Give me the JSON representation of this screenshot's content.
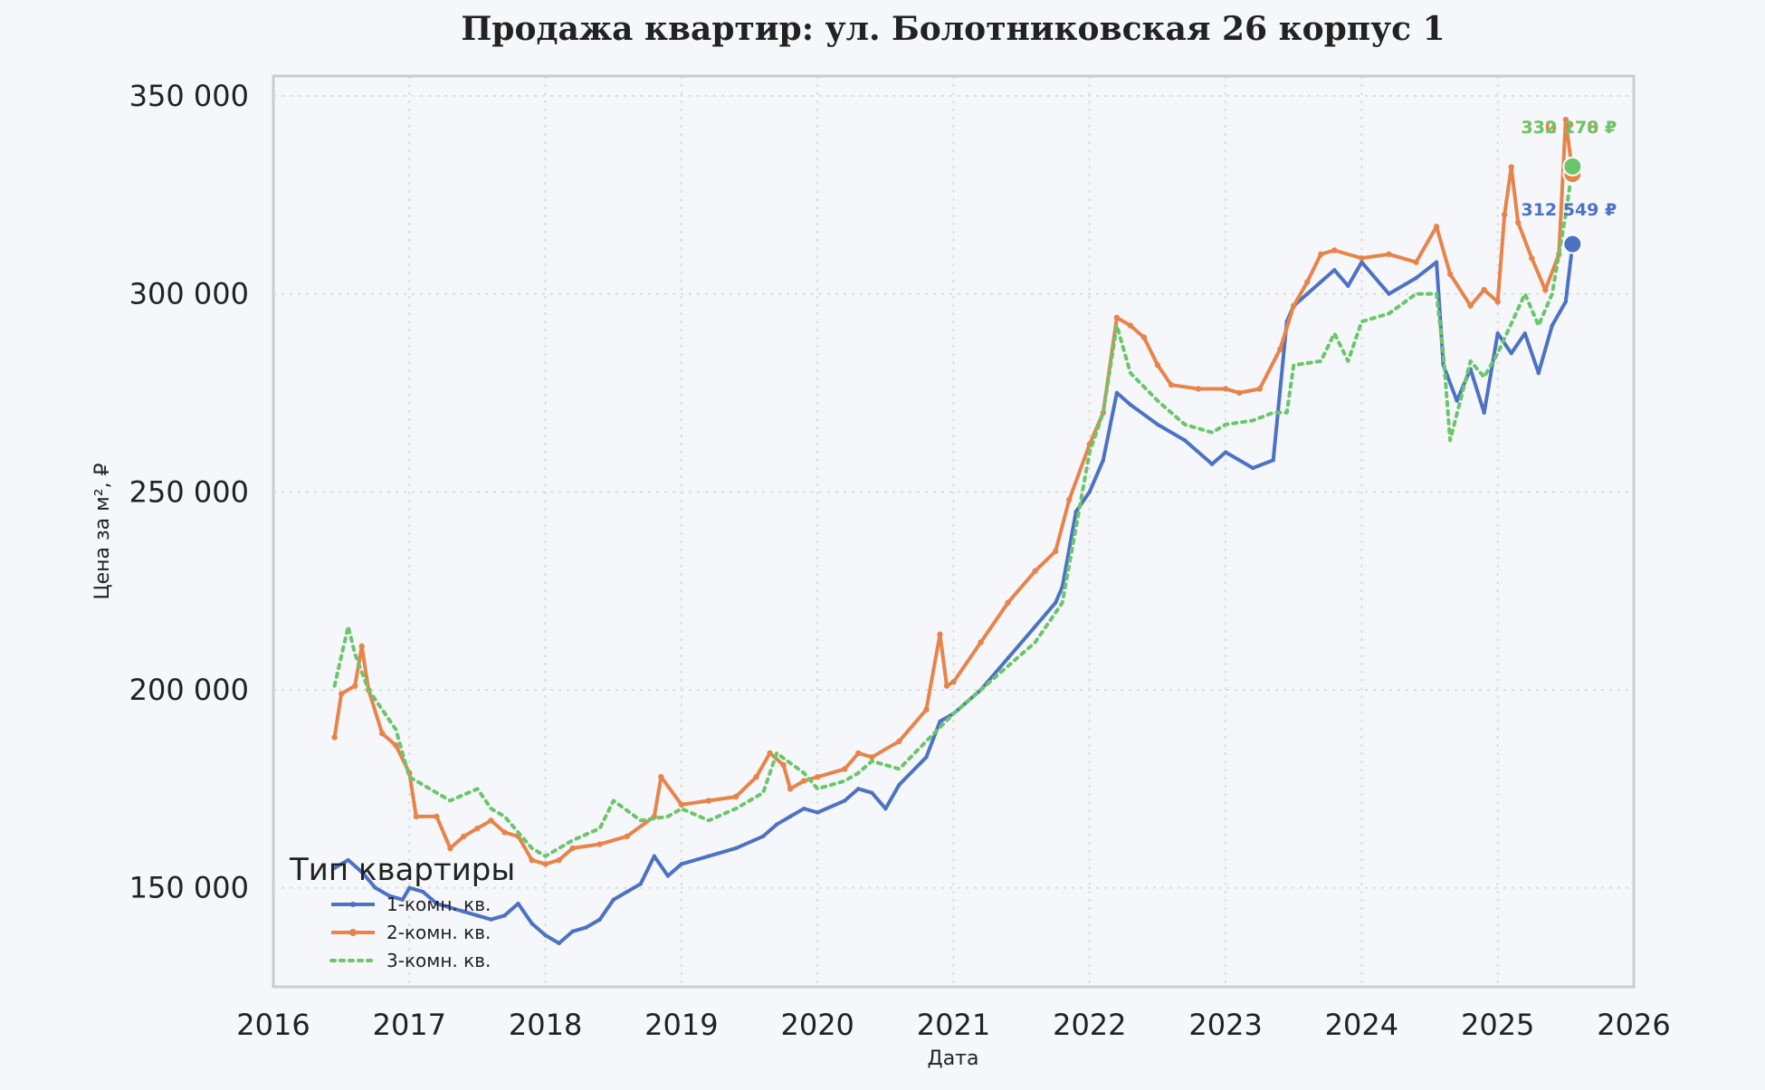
{
  "chart_data": {
    "type": "line",
    "title": "Продажа квартир: ул. Болотниковская 26 корпус 1",
    "xlabel": "Дата",
    "ylabel": "Цена за м², ₽",
    "xlim": [
      2016,
      2026
    ],
    "ylim": [
      125000,
      355000
    ],
    "x_ticks": [
      2016,
      2017,
      2018,
      2019,
      2020,
      2021,
      2022,
      2023,
      2024,
      2025,
      2026
    ],
    "x_tick_labels": [
      "2016",
      "2017",
      "2018",
      "2019",
      "2020",
      "2021",
      "2022",
      "2023",
      "2024",
      "2025",
      "2026"
    ],
    "y_ticks": [
      150000,
      200000,
      250000,
      300000,
      350000
    ],
    "y_tick_labels": [
      "150 000",
      "200 000",
      "250 000",
      "300 000",
      "350 000"
    ],
    "grid": true,
    "legend": {
      "title": "Тип квартиры",
      "placement": "lower-left"
    },
    "series": [
      {
        "name": "1-комн. кв.",
        "color": "#4c72c4",
        "style": "solid-with-small-markers",
        "x": [
          2016.45,
          2016.55,
          2016.65,
          2016.75,
          2016.85,
          2016.95,
          2017.0,
          2017.1,
          2017.2,
          2017.3,
          2017.4,
          2017.5,
          2017.6,
          2017.7,
          2017.8,
          2017.9,
          2018.0,
          2018.1,
          2018.2,
          2018.3,
          2018.4,
          2018.5,
          2018.6,
          2018.7,
          2018.8,
          2018.9,
          2019.0,
          2019.2,
          2019.4,
          2019.6,
          2019.7,
          2019.8,
          2019.9,
          2020.0,
          2020.2,
          2020.3,
          2020.4,
          2020.5,
          2020.6,
          2020.8,
          2020.9,
          2021.0,
          2021.2,
          2021.4,
          2021.6,
          2021.75,
          2021.8,
          2021.9,
          2022.0,
          2022.1,
          2022.2,
          2022.3,
          2022.5,
          2022.7,
          2022.9,
          2023.0,
          2023.2,
          2023.35,
          2023.45,
          2023.5,
          2023.6,
          2023.7,
          2023.8,
          2023.9,
          2024.0,
          2024.2,
          2024.4,
          2024.55,
          2024.6,
          2024.7,
          2024.8,
          2024.9,
          2025.0,
          2025.1,
          2025.2,
          2025.3,
          2025.4,
          2025.5,
          2025.55
        ],
        "values": [
          155000,
          157000,
          154000,
          150000,
          148000,
          147000,
          150000,
          149000,
          146000,
          145000,
          144000,
          143000,
          142000,
          143000,
          146000,
          141000,
          138000,
          136000,
          139000,
          140000,
          142000,
          147000,
          149000,
          151000,
          158000,
          153000,
          156000,
          158000,
          160000,
          163000,
          166000,
          168000,
          170000,
          169000,
          172000,
          175000,
          174000,
          170000,
          176000,
          183000,
          192000,
          194000,
          200000,
          208000,
          216000,
          222000,
          226000,
          245000,
          250000,
          258000,
          275000,
          272000,
          267000,
          263000,
          257000,
          260000,
          256000,
          258000,
          293000,
          297000,
          300000,
          303000,
          306000,
          302000,
          308000,
          300000,
          304000,
          308000,
          282000,
          273000,
          281000,
          270000,
          290000,
          285000,
          290000,
          280000,
          292000,
          298000,
          312549
        ]
      },
      {
        "name": "2-комн. кв.",
        "color": "#e8834a",
        "style": "solid-with-dot-markers",
        "x": [
          2016.45,
          2016.5,
          2016.6,
          2016.65,
          2016.7,
          2016.8,
          2016.9,
          2017.0,
          2017.05,
          2017.2,
          2017.3,
          2017.4,
          2017.5,
          2017.6,
          2017.7,
          2017.8,
          2017.9,
          2018.0,
          2018.1,
          2018.2,
          2018.4,
          2018.6,
          2018.8,
          2018.85,
          2019.0,
          2019.2,
          2019.4,
          2019.55,
          2019.65,
          2019.75,
          2019.8,
          2019.9,
          2020.0,
          2020.2,
          2020.3,
          2020.4,
          2020.6,
          2020.8,
          2020.9,
          2020.95,
          2021.0,
          2021.2,
          2021.4,
          2021.6,
          2021.75,
          2021.85,
          2022.0,
          2022.1,
          2022.2,
          2022.3,
          2022.4,
          2022.5,
          2022.6,
          2022.8,
          2023.0,
          2023.1,
          2023.25,
          2023.4,
          2023.5,
          2023.6,
          2023.7,
          2023.8,
          2024.0,
          2024.2,
          2024.4,
          2024.55,
          2024.65,
          2024.8,
          2024.9,
          2025.0,
          2025.05,
          2025.1,
          2025.15,
          2025.25,
          2025.35,
          2025.45,
          2025.5,
          2025.55
        ],
        "values": [
          188000,
          199000,
          201000,
          211000,
          200000,
          189000,
          186000,
          179000,
          168000,
          168000,
          160000,
          163000,
          165000,
          167000,
          164000,
          163000,
          157000,
          156000,
          157000,
          160000,
          161000,
          163000,
          168000,
          178000,
          171000,
          172000,
          173000,
          178000,
          184000,
          181000,
          175000,
          177000,
          178000,
          180000,
          184000,
          183000,
          187000,
          195000,
          214000,
          201000,
          202000,
          212000,
          222000,
          230000,
          235000,
          248000,
          262000,
          270000,
          294000,
          292000,
          289000,
          282000,
          277000,
          276000,
          276000,
          275000,
          276000,
          286000,
          297000,
          303000,
          310000,
          311000,
          309000,
          310000,
          308000,
          317000,
          305000,
          297000,
          301000,
          298000,
          320000,
          332000,
          318000,
          309000,
          301000,
          310000,
          344000,
          330278
        ]
      },
      {
        "name": "3-комн. кв.",
        "color": "#6ac66a",
        "style": "dotted",
        "x": [
          2016.45,
          2016.55,
          2016.6,
          2016.7,
          2016.8,
          2016.9,
          2017.0,
          2017.1,
          2017.3,
          2017.5,
          2017.6,
          2017.7,
          2017.8,
          2017.9,
          2018.0,
          2018.2,
          2018.4,
          2018.5,
          2018.7,
          2018.9,
          2019.0,
          2019.2,
          2019.4,
          2019.6,
          2019.7,
          2019.9,
          2020.0,
          2020.2,
          2020.3,
          2020.4,
          2020.6,
          2020.8,
          2021.0,
          2021.2,
          2021.4,
          2021.6,
          2021.8,
          2022.0,
          2022.1,
          2022.2,
          2022.3,
          2022.5,
          2022.7,
          2022.9,
          2023.0,
          2023.2,
          2023.35,
          2023.45,
          2023.5,
          2023.7,
          2023.8,
          2023.9,
          2024.0,
          2024.2,
          2024.4,
          2024.55,
          2024.6,
          2024.65,
          2024.8,
          2024.9,
          2025.0,
          2025.2,
          2025.3,
          2025.4,
          2025.5,
          2025.55
        ],
        "values": [
          201000,
          216000,
          209000,
          200000,
          195000,
          190000,
          178000,
          176000,
          172000,
          175000,
          170000,
          168000,
          164000,
          160000,
          158000,
          162000,
          165000,
          172000,
          167000,
          168000,
          170000,
          167000,
          170000,
          174000,
          184000,
          179000,
          175000,
          177000,
          179000,
          182000,
          180000,
          187000,
          194000,
          200000,
          206000,
          212000,
          222000,
          260000,
          270000,
          292000,
          280000,
          273000,
          267000,
          265000,
          267000,
          268000,
          270000,
          270000,
          282000,
          283000,
          290000,
          283000,
          293000,
          295000,
          300000,
          300000,
          285000,
          263000,
          283000,
          279000,
          285000,
          300000,
          292000,
          300000,
          320000,
          332170
        ]
      }
    ],
    "annotations": [
      {
        "series": "1-комн. кв.",
        "x": 2025.55,
        "value": 312549,
        "text": "312 549 ₽"
      },
      {
        "series": "2-комн. кв.",
        "x": 2025.55,
        "value": 330278,
        "text": "330 278 ₽"
      },
      {
        "series": "3-комн. кв.",
        "x": 2025.55,
        "value": 332170,
        "text": "332 170 ₽"
      }
    ]
  }
}
